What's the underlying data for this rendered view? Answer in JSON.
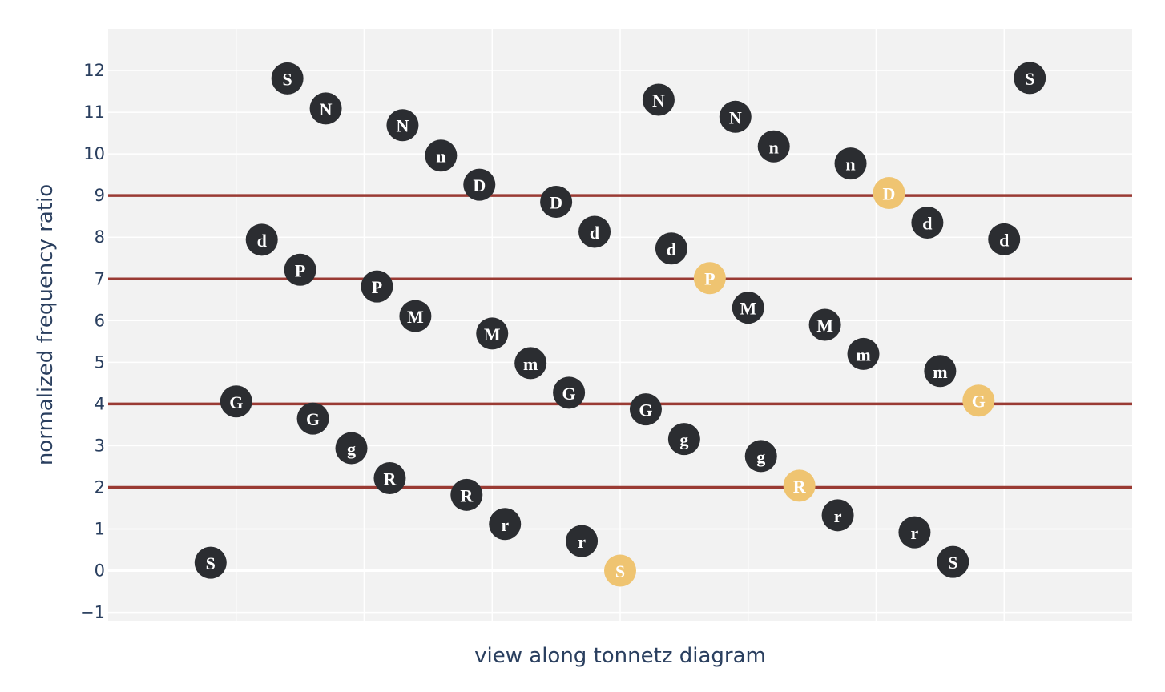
{
  "chart_data": {
    "type": "scatter",
    "title": "",
    "xlabel": "view along tonnetz diagram",
    "ylabel": "normalized frequency ratio",
    "xlim": [
      -5,
      35
    ],
    "ylim": [
      -1.2,
      13.0
    ],
    "yticks": [
      -1,
      0,
      1,
      2,
      3,
      4,
      5,
      6,
      7,
      8,
      9,
      10,
      11,
      12
    ],
    "ytick_labels": [
      "−1",
      "0",
      "1",
      "2",
      "3",
      "4",
      "5",
      "6",
      "7",
      "8",
      "9",
      "10",
      "11",
      "12"
    ],
    "xgrid": [
      0,
      5,
      10,
      15,
      20,
      25,
      30
    ],
    "grid": true,
    "reference_lines": [
      2,
      4,
      7,
      9
    ],
    "colors": {
      "plot_bg": "#f2f2f2",
      "grid": "#ffffff",
      "reference_line": "#9a3b34",
      "marker_default": "#2b2d31",
      "marker_highlight": "#efc471",
      "marker_text": "#ffffff",
      "axis_text": "#2a3f5f"
    },
    "points": [
      {
        "x": -1.0,
        "y": 0.19,
        "label": "S",
        "highlight": false
      },
      {
        "x": 0.0,
        "y": 4.06,
        "label": "G",
        "highlight": false
      },
      {
        "x": 1.0,
        "y": 7.94,
        "label": "d",
        "highlight": false
      },
      {
        "x": 2.0,
        "y": 11.81,
        "label": "S",
        "highlight": false
      },
      {
        "x": 2.5,
        "y": 7.22,
        "label": "P",
        "highlight": false
      },
      {
        "x": 3.0,
        "y": 3.65,
        "label": "G",
        "highlight": false
      },
      {
        "x": 3.5,
        "y": 11.09,
        "label": "N",
        "highlight": false
      },
      {
        "x": 4.5,
        "y": 2.94,
        "label": "g",
        "highlight": false
      },
      {
        "x": 5.5,
        "y": 6.82,
        "label": "P",
        "highlight": false
      },
      {
        "x": 6.0,
        "y": 2.22,
        "label": "R",
        "highlight": false
      },
      {
        "x": 6.5,
        "y": 10.69,
        "label": "N",
        "highlight": false
      },
      {
        "x": 7.0,
        "y": 6.11,
        "label": "M",
        "highlight": false
      },
      {
        "x": 8.0,
        "y": 9.96,
        "label": "n",
        "highlight": false
      },
      {
        "x": 9.0,
        "y": 1.82,
        "label": "R",
        "highlight": false
      },
      {
        "x": 9.5,
        "y": 9.26,
        "label": "D",
        "highlight": false
      },
      {
        "x": 10.0,
        "y": 5.69,
        "label": "M",
        "highlight": false
      },
      {
        "x": 10.5,
        "y": 1.12,
        "label": "r",
        "highlight": false
      },
      {
        "x": 11.5,
        "y": 4.98,
        "label": "m",
        "highlight": false
      },
      {
        "x": 12.5,
        "y": 8.85,
        "label": "D",
        "highlight": false
      },
      {
        "x": 13.0,
        "y": 4.27,
        "label": "G",
        "highlight": false
      },
      {
        "x": 13.5,
        "y": 0.71,
        "label": "r",
        "highlight": false
      },
      {
        "x": 14.0,
        "y": 8.13,
        "label": "d",
        "highlight": false
      },
      {
        "x": 15.0,
        "y": 0.0,
        "label": "S",
        "highlight": true
      },
      {
        "x": 16.0,
        "y": 3.87,
        "label": "G",
        "highlight": false
      },
      {
        "x": 16.5,
        "y": 11.3,
        "label": "N",
        "highlight": false
      },
      {
        "x": 17.0,
        "y": 7.73,
        "label": "d",
        "highlight": false
      },
      {
        "x": 17.5,
        "y": 3.16,
        "label": "g",
        "highlight": false
      },
      {
        "x": 18.5,
        "y": 7.02,
        "label": "P",
        "highlight": true
      },
      {
        "x": 19.5,
        "y": 10.89,
        "label": "N",
        "highlight": false
      },
      {
        "x": 20.0,
        "y": 6.31,
        "label": "M",
        "highlight": false
      },
      {
        "x": 20.5,
        "y": 2.75,
        "label": "g",
        "highlight": false
      },
      {
        "x": 21.0,
        "y": 10.18,
        "label": "n",
        "highlight": false
      },
      {
        "x": 22.0,
        "y": 2.04,
        "label": "R",
        "highlight": true
      },
      {
        "x": 23.0,
        "y": 5.9,
        "label": "M",
        "highlight": false
      },
      {
        "x": 23.5,
        "y": 1.33,
        "label": "r",
        "highlight": false
      },
      {
        "x": 24.0,
        "y": 9.77,
        "label": "n",
        "highlight": false
      },
      {
        "x": 24.5,
        "y": 5.2,
        "label": "m",
        "highlight": false
      },
      {
        "x": 25.5,
        "y": 9.06,
        "label": "D",
        "highlight": true
      },
      {
        "x": 26.5,
        "y": 0.92,
        "label": "r",
        "highlight": false
      },
      {
        "x": 27.0,
        "y": 8.35,
        "label": "d",
        "highlight": false
      },
      {
        "x": 27.5,
        "y": 4.79,
        "label": "m",
        "highlight": false
      },
      {
        "x": 28.0,
        "y": 0.21,
        "label": "S",
        "highlight": false
      },
      {
        "x": 29.0,
        "y": 4.08,
        "label": "G",
        "highlight": true
      },
      {
        "x": 30.0,
        "y": 7.95,
        "label": "d",
        "highlight": false
      },
      {
        "x": 31.0,
        "y": 11.82,
        "label": "S",
        "highlight": false
      }
    ]
  }
}
